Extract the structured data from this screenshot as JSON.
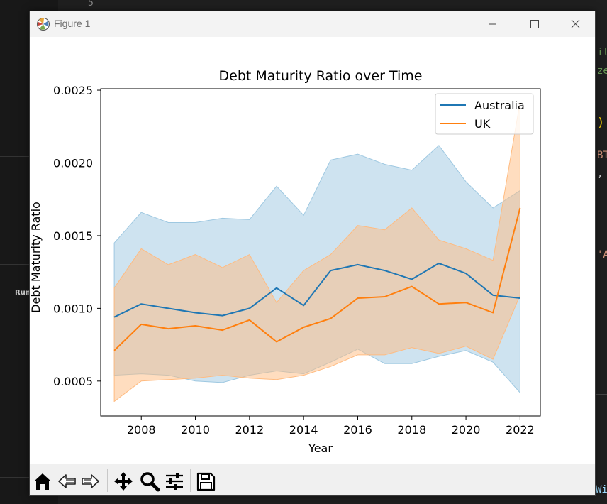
{
  "background": {
    "line_number": "5",
    "run_label": "Run",
    "code_fragments": [
      "it",
      "ze",
      ")",
      "BT",
      ",",
      "'A",
      "Wi"
    ]
  },
  "window": {
    "title": "Figure 1",
    "controls": [
      "minimize",
      "maximize",
      "close"
    ]
  },
  "toolbar": {
    "buttons": [
      "home-icon",
      "back-icon",
      "forward-icon",
      "pan-icon",
      "zoom-icon",
      "configure-subplots-icon",
      "save-icon"
    ]
  },
  "colors": {
    "australia": "#1f77b4",
    "uk": "#ff7f0e",
    "australia_band": "#9ec8e1",
    "uk_band": "#ffbb80"
  },
  "chart_data": {
    "type": "line",
    "title": "Debt Maturity Ratio over Time",
    "xlabel": "Year",
    "ylabel": "Debt Maturity Ratio",
    "xlim": [
      2006.5,
      2022.75
    ],
    "ylim": [
      0.00026,
      0.00251
    ],
    "x_ticks": [
      2008,
      2010,
      2012,
      2014,
      2016,
      2018,
      2020,
      2022
    ],
    "y_ticks": [
      0.0005,
      0.001,
      0.0015,
      0.002,
      0.0025
    ],
    "y_tick_labels": [
      "0.0005",
      "0.0010",
      "0.0015",
      "0.0020",
      "0.0025"
    ],
    "legend_position": "top-right",
    "grid": false,
    "x": [
      2007,
      2008,
      2009,
      2010,
      2011,
      2012,
      2013,
      2014,
      2015,
      2016,
      2017,
      2018,
      2019,
      2020,
      2021,
      2022
    ],
    "series": [
      {
        "name": "Australia",
        "values": [
          0.00094,
          0.00103,
          0.001,
          0.00097,
          0.00095,
          0.001,
          0.00114,
          0.00102,
          0.00126,
          0.0013,
          0.00126,
          0.0012,
          0.00131,
          0.00124,
          0.00109,
          0.00107
        ],
        "lower": [
          0.00054,
          0.00055,
          0.00054,
          0.0005,
          0.00049,
          0.00054,
          0.00057,
          0.00055,
          0.00063,
          0.00072,
          0.00062,
          0.00062,
          0.00067,
          0.00071,
          0.00063,
          0.00042
        ],
        "upper": [
          0.00145,
          0.00166,
          0.00159,
          0.00159,
          0.00162,
          0.00161,
          0.00184,
          0.00164,
          0.00202,
          0.00206,
          0.00199,
          0.00195,
          0.00212,
          0.00187,
          0.00169,
          0.00181
        ]
      },
      {
        "name": "UK",
        "values": [
          0.00071,
          0.00089,
          0.00086,
          0.00088,
          0.00085,
          0.00092,
          0.00077,
          0.00087,
          0.00093,
          0.00107,
          0.00108,
          0.00115,
          0.00103,
          0.00104,
          0.00097,
          0.00169
        ],
        "lower": [
          0.00036,
          0.0005,
          0.00051,
          0.00052,
          0.00054,
          0.00052,
          0.00051,
          0.00054,
          0.0006,
          0.00068,
          0.00068,
          0.00073,
          0.00069,
          0.00074,
          0.00065,
          0.00109
        ],
        "upper": [
          0.00114,
          0.00141,
          0.0013,
          0.00137,
          0.00128,
          0.00137,
          0.00104,
          0.00126,
          0.00137,
          0.00157,
          0.00154,
          0.00169,
          0.00147,
          0.00141,
          0.00133,
          0.00242
        ]
      }
    ]
  }
}
